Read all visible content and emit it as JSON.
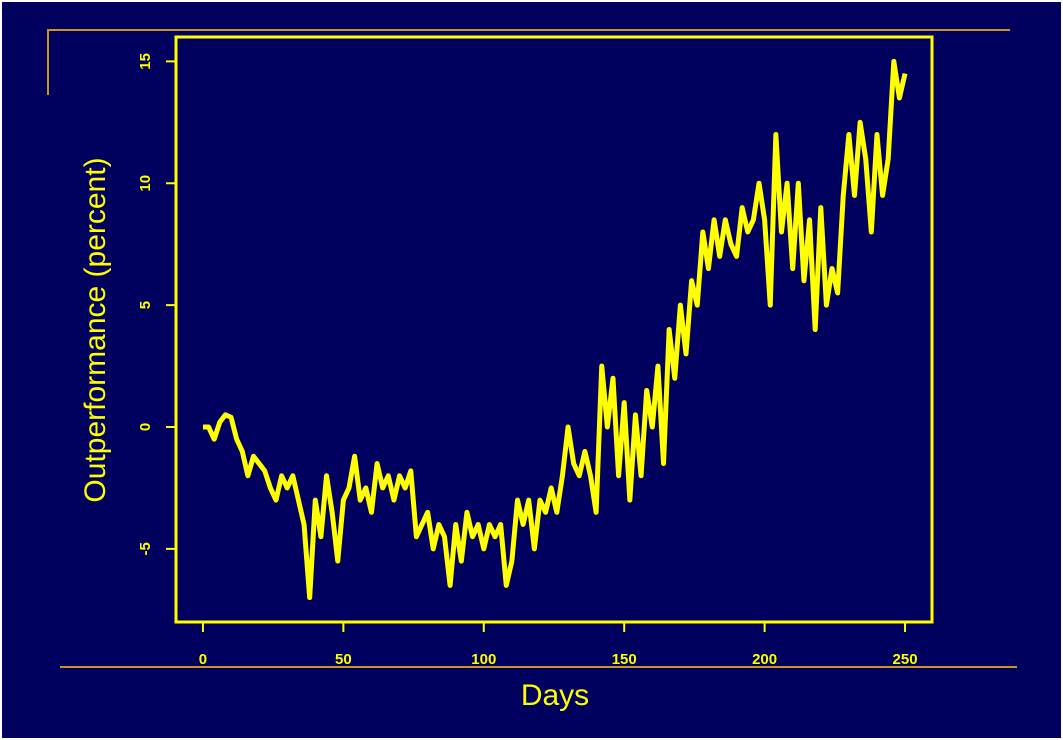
{
  "chart_data": {
    "type": "line",
    "xlabel": "Days",
    "ylabel": "Outperformance (percent)",
    "x": [
      0,
      2,
      4,
      6,
      8,
      10,
      12,
      14,
      16,
      18,
      20,
      22,
      24,
      26,
      28,
      30,
      32,
      34,
      36,
      38,
      40,
      42,
      44,
      46,
      48,
      50,
      52,
      54,
      56,
      58,
      60,
      62,
      64,
      66,
      68,
      70,
      72,
      74,
      76,
      78,
      80,
      82,
      84,
      86,
      88,
      90,
      92,
      94,
      96,
      98,
      100,
      102,
      104,
      106,
      108,
      110,
      112,
      114,
      116,
      118,
      120,
      122,
      124,
      126,
      128,
      130,
      132,
      134,
      136,
      138,
      140,
      142,
      144,
      146,
      148,
      150,
      152,
      154,
      156,
      158,
      160,
      162,
      164,
      166,
      168,
      170,
      172,
      174,
      176,
      178,
      180,
      182,
      184,
      186,
      188,
      190,
      192,
      194,
      196,
      198,
      200,
      202,
      204,
      206,
      208,
      210,
      212,
      214,
      216,
      218,
      220,
      222,
      224,
      226,
      228,
      230,
      232,
      234,
      236,
      238,
      240,
      242,
      244,
      246,
      248,
      250
    ],
    "series": [
      {
        "name": "Outperformance",
        "color": "#ffff00",
        "values": [
          0,
          0,
          -0.5,
          0.2,
          0.5,
          0.4,
          -0.5,
          -1,
          -2,
          -1.2,
          -1.5,
          -1.8,
          -2.5,
          -3,
          -2,
          -2.5,
          -2,
          -3,
          -4,
          -7,
          -3,
          -4.5,
          -2,
          -3.5,
          -5.5,
          -3,
          -2.5,
          -1.2,
          -3,
          -2.5,
          -3.5,
          -1.5,
          -2.5,
          -2,
          -3,
          -2,
          -2.5,
          -1.8,
          -4.5,
          -4,
          -3.5,
          -5,
          -4,
          -4.5,
          -6.5,
          -4,
          -5.5,
          -3.5,
          -4.5,
          -4,
          -5,
          -4,
          -4.5,
          -4,
          -6.5,
          -5.5,
          -3,
          -4,
          -3,
          -5,
          -3,
          -3.5,
          -2.5,
          -3.5,
          -2,
          0,
          -1.5,
          -2,
          -1,
          -2,
          -3.5,
          2.5,
          0,
          2,
          -2,
          1,
          -3,
          0.5,
          -2,
          1.5,
          0,
          2.5,
          -1.5,
          4,
          2,
          5,
          3,
          6,
          5,
          8,
          6.5,
          8.5,
          7,
          8.5,
          7.5,
          7,
          9,
          8,
          8.5,
          10,
          8.5,
          5,
          12,
          8,
          10,
          6.5,
          10,
          6,
          8.5,
          4,
          9,
          5,
          6.5,
          5.5,
          9.5,
          12,
          9.5,
          12.5,
          11,
          8,
          12,
          9.5,
          11,
          15,
          13.5,
          14.5
        ]
      }
    ],
    "xlim": [
      -9.6,
      259.6
    ],
    "ylim": [
      -8,
      16
    ],
    "xticks": [
      0,
      50,
      100,
      150,
      200,
      250
    ],
    "yticks": [
      -5,
      0,
      5,
      10,
      15
    ]
  }
}
